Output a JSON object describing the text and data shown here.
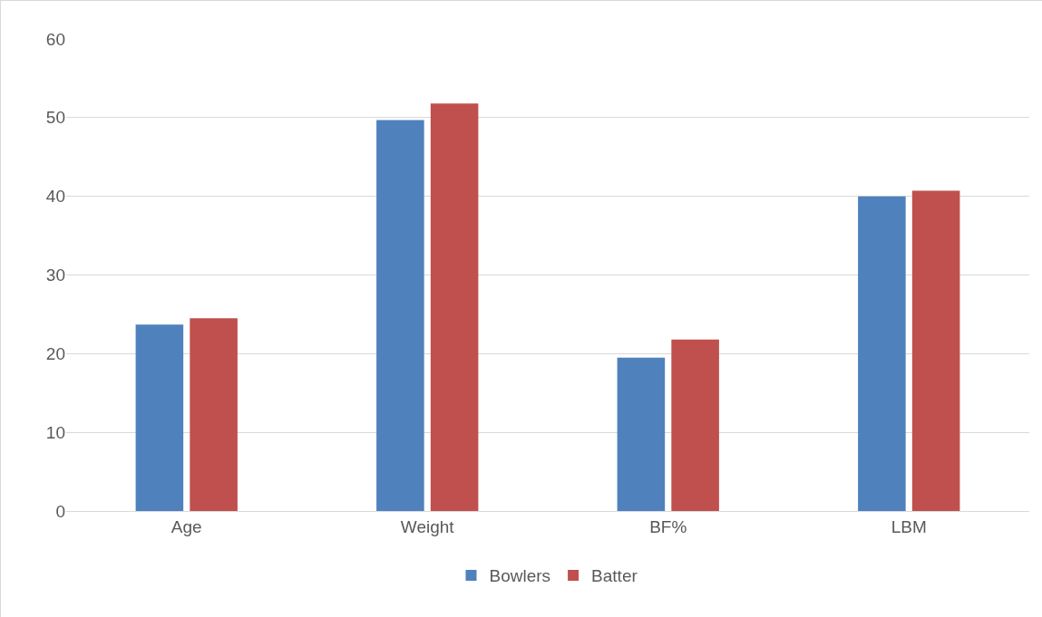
{
  "chart_data": {
    "type": "bar",
    "categories": [
      "Age",
      "Weight",
      "BF%",
      "LBM"
    ],
    "series": [
      {
        "name": "Bowlers",
        "color": "#4f81bd",
        "values": [
          23.7,
          49.7,
          19.5,
          40.0
        ]
      },
      {
        "name": "Batter",
        "color": "#c0504d",
        "values": [
          24.5,
          51.8,
          21.8,
          40.7
        ]
      }
    ],
    "ylim": [
      0,
      60
    ],
    "yticks": [
      0,
      10,
      20,
      30,
      40,
      50,
      60
    ],
    "grid": "y",
    "legend": "bottom"
  }
}
